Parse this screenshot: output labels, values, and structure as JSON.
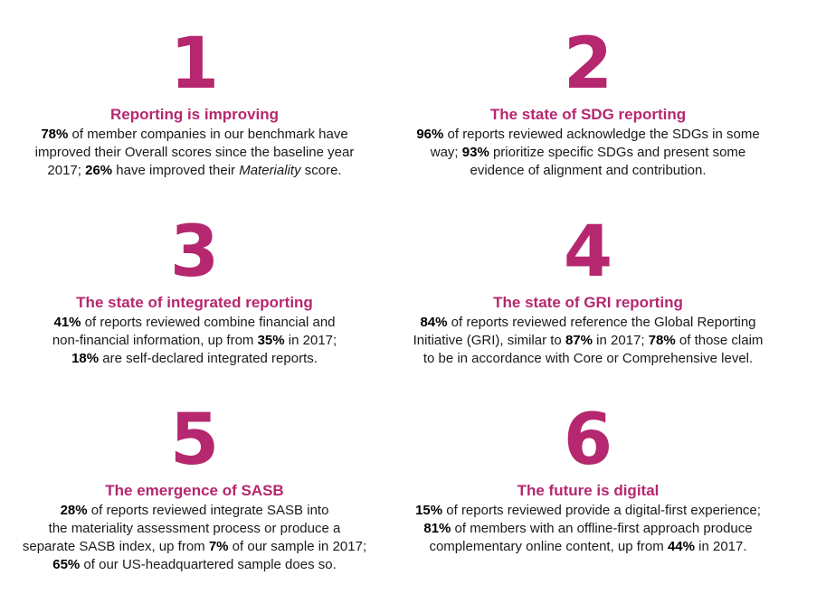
{
  "colors": {
    "accent": "#b5276e",
    "text": "#1a1a1a"
  },
  "items": [
    {
      "number": "1",
      "heading": "Reporting is improving",
      "lines": [
        [
          {
            "b": "78%"
          },
          {
            "t": " of member companies in our benchmark have"
          }
        ],
        [
          {
            "t": "improved their Overall scores since the baseline year"
          }
        ],
        [
          {
            "t": "2017; "
          },
          {
            "b": "26%"
          },
          {
            "t": " have improved their "
          },
          {
            "i": "Materiality"
          },
          {
            "t": " score."
          }
        ]
      ]
    },
    {
      "number": "2",
      "heading": "The state of SDG reporting",
      "lines": [
        [
          {
            "b": "96%"
          },
          {
            "t": " of reports reviewed acknowledge the SDGs in some"
          }
        ],
        [
          {
            "t": "way; "
          },
          {
            "b": "93%"
          },
          {
            "t": " prioritize specific SDGs and present some"
          }
        ],
        [
          {
            "t": "evidence of alignment and contribution."
          }
        ]
      ]
    },
    {
      "number": "3",
      "heading": "The state of integrated reporting",
      "lines": [
        [
          {
            "b": "41%"
          },
          {
            "t": " of reports reviewed combine financial and"
          }
        ],
        [
          {
            "t": "non-financial information, up from "
          },
          {
            "b": "35%"
          },
          {
            "t": " in 2017;"
          }
        ],
        [
          {
            "b": "18%"
          },
          {
            "t": " are self-declared integrated reports."
          }
        ]
      ]
    },
    {
      "number": "4",
      "heading": "The state of GRI reporting",
      "lines": [
        [
          {
            "b": "84%"
          },
          {
            "t": " of reports reviewed reference the Global Reporting"
          }
        ],
        [
          {
            "t": "Initiative (GRI), similar to "
          },
          {
            "b": "87%"
          },
          {
            "t": " in 2017; "
          },
          {
            "b": "78%"
          },
          {
            "t": " of those claim"
          }
        ],
        [
          {
            "t": "to be in accordance with Core or Comprehensive level."
          }
        ]
      ]
    },
    {
      "number": "5",
      "heading": "The emergence of SASB",
      "lines": [
        [
          {
            "b": "28%"
          },
          {
            "t": " of reports reviewed integrate SASB into"
          }
        ],
        [
          {
            "t": "the materiality assessment process or produce a"
          }
        ],
        [
          {
            "t": "separate SASB index, up from "
          },
          {
            "b": "7%"
          },
          {
            "t": " of our sample in 2017;"
          }
        ],
        [
          {
            "b": "65%"
          },
          {
            "t": " of our US-headquartered sample does so."
          }
        ]
      ]
    },
    {
      "number": "6",
      "heading": "The future is digital",
      "lines": [
        [
          {
            "b": "15%"
          },
          {
            "t": " of reports reviewed provide a digital-first experience;"
          }
        ],
        [
          {
            "b": "81%"
          },
          {
            "t": " of members with an offline-first approach produce"
          }
        ],
        [
          {
            "t": "complementary online content, up from "
          },
          {
            "b": "44%"
          },
          {
            "t": " in 2017."
          }
        ]
      ]
    }
  ]
}
